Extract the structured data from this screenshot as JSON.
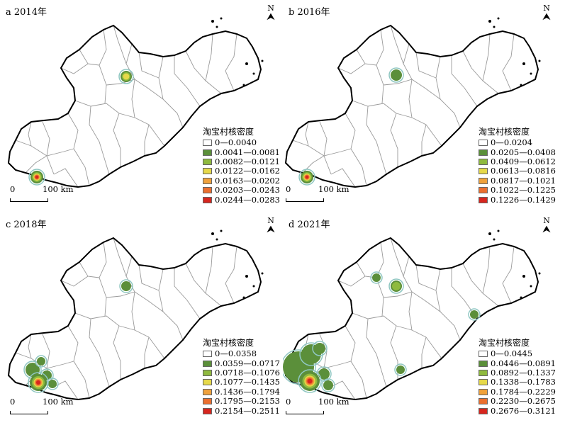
{
  "panels": [
    {
      "title": "a 2014年",
      "north": "N",
      "legend_title": "淘宝村核密度",
      "legend": [
        "0—0.0040",
        "0.0041—0.0081",
        "0.0082—0.0121",
        "0.0122—0.0162",
        "0.0163—0.0202",
        "0.0203—0.0243",
        "0.0244—0.0283"
      ],
      "scale_min": "0",
      "scale_max": "100 km"
    },
    {
      "title": "b 2016年",
      "north": "N",
      "legend_title": "淘宝村核密度",
      "legend": [
        "0—0.0204",
        "0.0205—0.0408",
        "0.0409—0.0612",
        "0.0613—0.0816",
        "0.0817—0.1021",
        "0.1022—0.1225",
        "0.1226—0.1429"
      ],
      "scale_min": "0",
      "scale_max": "100 km"
    },
    {
      "title": "c 2018年",
      "north": "N",
      "legend_title": "淘宝村核密度",
      "legend": [
        "0—0.0358",
        "0.0359—0.0717",
        "0.0718—0.1076",
        "0.1077—0.1435",
        "0.1436—0.1794",
        "0.1795—0.2153",
        "0.2154—0.2511"
      ],
      "scale_min": "0",
      "scale_max": "100 km"
    },
    {
      "title": "d 2021年",
      "north": "N",
      "legend_title": "淘宝村核密度",
      "legend": [
        "0—0.0445",
        "0.0446—0.0891",
        "0.0892—0.1337",
        "0.1338—0.1783",
        "0.1784—0.2229",
        "0.2230—0.2675",
        "0.2676—0.3121"
      ],
      "scale_min": "0",
      "scale_max": "100 km"
    }
  ],
  "legend_colors": [
    "#ffffff",
    "#5b8f3a",
    "#8fba3e",
    "#e6d94a",
    "#f0a23c",
    "#eb6f2f",
    "#d7261e"
  ]
}
